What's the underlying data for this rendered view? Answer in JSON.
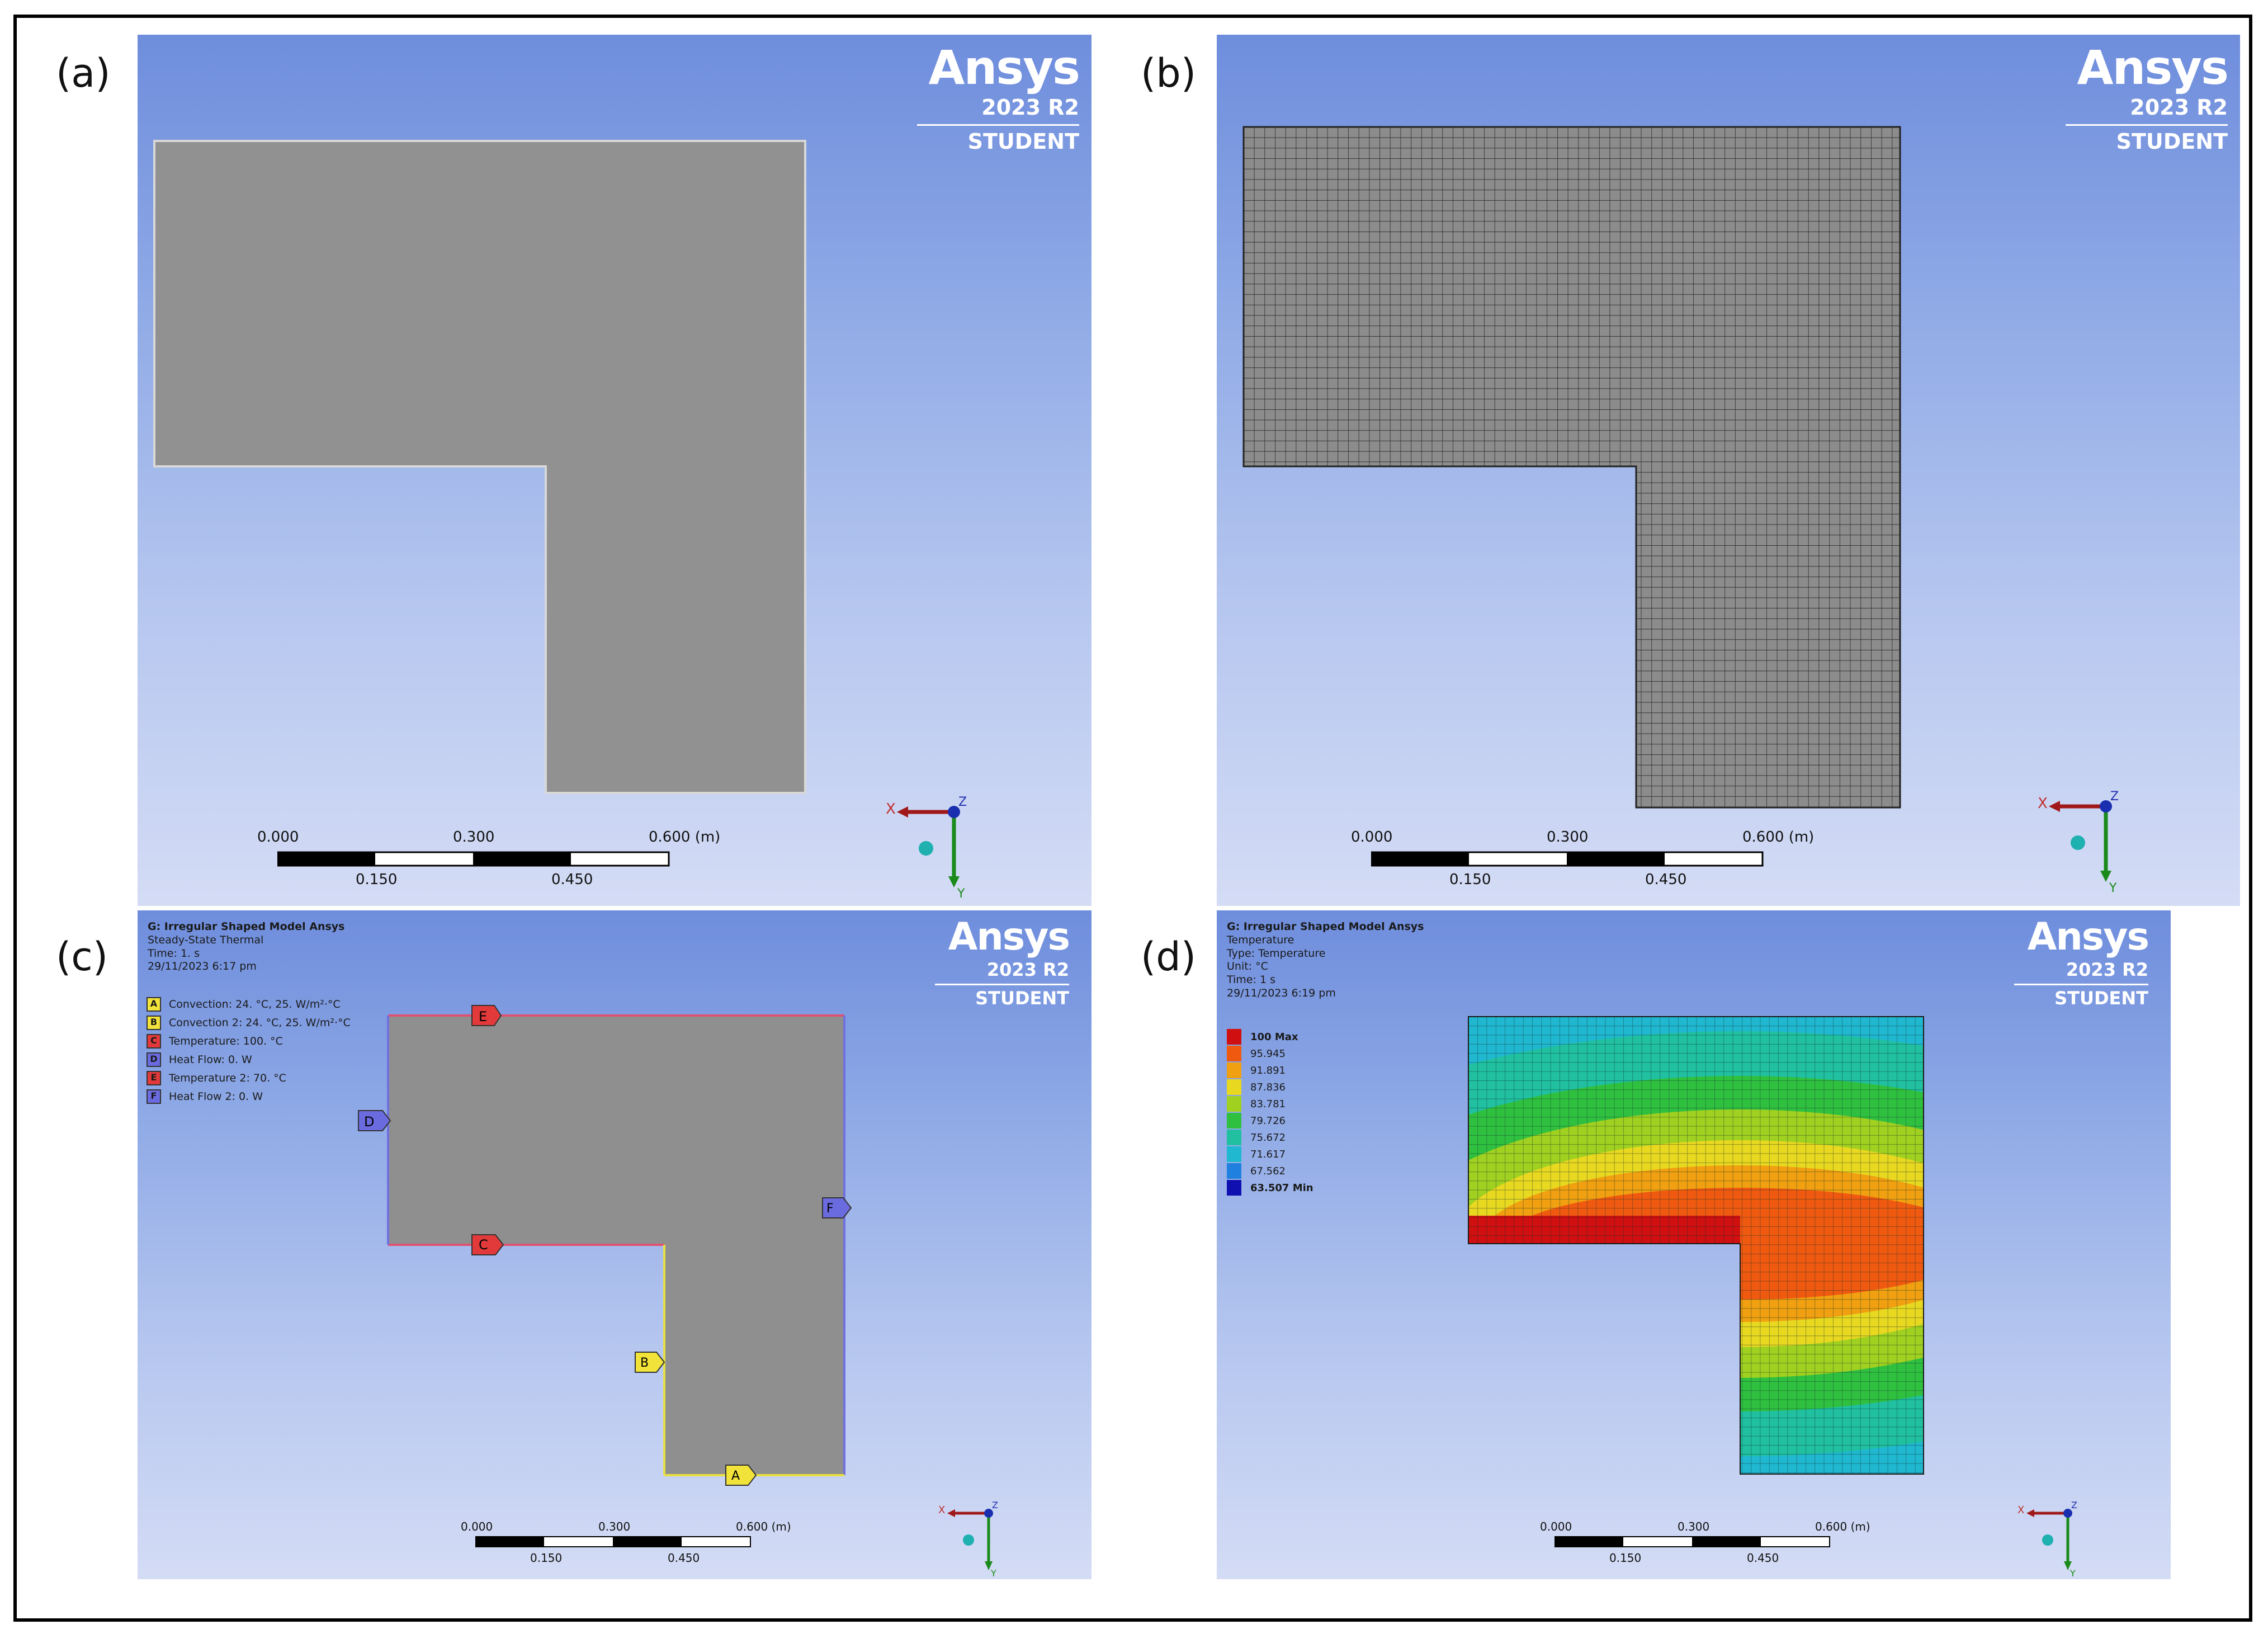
{
  "panels": {
    "a": {
      "label": "(a)"
    },
    "b": {
      "label": "(b)"
    },
    "c": {
      "label": "(c)"
    },
    "d": {
      "label": "(d)"
    }
  },
  "logo": {
    "brand": "Ansys",
    "version": "2023 R2",
    "edition": "STUDENT"
  },
  "scale": {
    "t0": "0.000",
    "t1": "0.300",
    "t2": "0.600 (m)",
    "b1": "0.150",
    "b2": "0.450"
  },
  "triad": {
    "x": "X",
    "y": "Y",
    "z": "Z"
  },
  "panel_c": {
    "title": "G: Irregular Shaped Model Ansys",
    "lines": [
      "Steady-State Thermal",
      "Time: 1. s",
      "29/11/2023 6:17 pm"
    ],
    "bcs": [
      {
        "key": "A",
        "text": "Convection: 24. °C, 25. W/m²·°C",
        "color": "#f2e33a"
      },
      {
        "key": "B",
        "text": "Convection 2: 24. °C, 25. W/m²·°C",
        "color": "#f2e33a"
      },
      {
        "key": "C",
        "text": "Temperature: 100. °C",
        "color": "#e23a3a"
      },
      {
        "key": "D",
        "text": "Heat Flow: 0. W",
        "color": "#6b6be0"
      },
      {
        "key": "E",
        "text": "Temperature 2: 70. °C",
        "color": "#e23a3a"
      },
      {
        "key": "F",
        "text": "Heat Flow 2: 0. W",
        "color": "#6b6be0"
      }
    ]
  },
  "panel_d": {
    "title": "G: Irregular Shaped Model Ansys",
    "lines": [
      "Temperature",
      "Type: Temperature",
      "Unit: °C",
      "Time: 1 s",
      "29/11/2023 6:19 pm"
    ],
    "legend": [
      {
        "value": "100 Max",
        "color": "#d01010",
        "bold": true
      },
      {
        "value": "95.945",
        "color": "#f05a10"
      },
      {
        "value": "91.891",
        "color": "#f0a010"
      },
      {
        "value": "87.836",
        "color": "#e8d820"
      },
      {
        "value": "83.781",
        "color": "#a0d020"
      },
      {
        "value": "79.726",
        "color": "#30c040"
      },
      {
        "value": "75.672",
        "color": "#20c0a0"
      },
      {
        "value": "71.617",
        "color": "#20b8d0"
      },
      {
        "value": "67.562",
        "color": "#2080e0"
      },
      {
        "value": "63.507 Min",
        "color": "#1010b0",
        "bold": true
      }
    ]
  }
}
